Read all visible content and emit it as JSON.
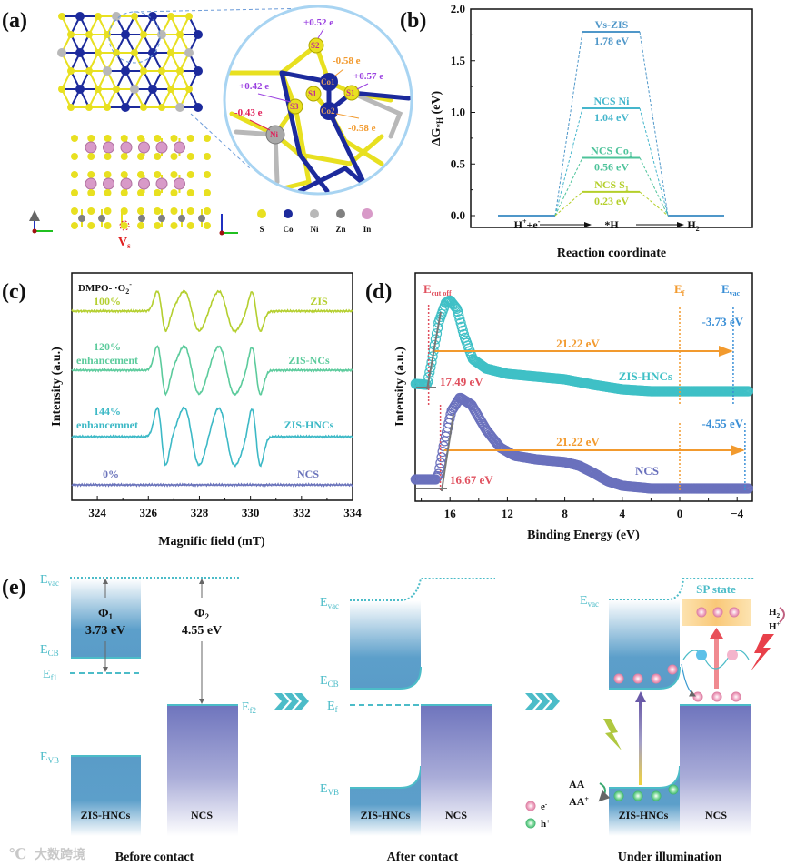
{
  "panel_labels": {
    "a": "(a)",
    "b": "(b)",
    "c": "(c)",
    "d": "(d)",
    "e": "(e)"
  },
  "panel_a": {
    "vacancy_label": {
      "main": "V",
      "sub": "s"
    },
    "charges": {
      "s2": "+0.52 e",
      "co1": "-0.58 e",
      "s1": "+0.57 e",
      "s3": "+0.42 e",
      "ni": "-0.43 e",
      "co2": "-0.58 e"
    },
    "zoom_atom_labels": {
      "s2": "S2",
      "co1": "Co1",
      "s1": "S1",
      "s": "S1",
      "s3": "S3",
      "co2": "Co2",
      "ni": "Ni"
    },
    "legend": [
      "S",
      "Co",
      "Ni",
      "Zn",
      "In"
    ],
    "colors": {
      "S": "#e8e020",
      "Co": "#1c2a9c",
      "Ni": "#b8b8b8",
      "Zn": "#808080",
      "In": "#d89ac8"
    }
  },
  "chart_data": [
    {
      "id": "b",
      "type": "line",
      "title": "",
      "xlabel": "Reaction coordinate",
      "ylabel": {
        "main": "ΔG",
        "sub": "*H",
        "unit": " (eV)"
      },
      "ylim": [
        -0.11,
        2.0
      ],
      "yticks": [
        "0.0",
        "0.5",
        "1.0",
        "1.5",
        "2.0"
      ],
      "ytick_values": [
        0,
        0.5,
        1.0,
        1.5,
        2.0
      ],
      "x_steps": [
        {
          "main": "H",
          "sup1": "+",
          "mid": "+e",
          "sup2": "-"
        },
        {
          "main": "*H"
        },
        {
          "main": "H",
          "sub": "2"
        }
      ],
      "series": [
        {
          "name": "Vs-ZIS",
          "name_sub": "",
          "value": 1.78,
          "label": "1.78 eV",
          "color": "#4f97c9"
        },
        {
          "name": "NCS Ni",
          "name_sub": "",
          "value": 1.04,
          "label": "1.04 eV",
          "color": "#45b6cc"
        },
        {
          "name": "NCS Co",
          "name_sub": "1",
          "value": 0.56,
          "label": "0.56 eV",
          "color": "#4dc39a"
        },
        {
          "name": "NCS S",
          "name_sub": "1",
          "value": 0.23,
          "label": "0.23 eV",
          "color": "#b4cf2a"
        }
      ]
    },
    {
      "id": "c",
      "type": "line",
      "title": {
        "main": "DMPO- ·O",
        "sub": "2",
        "sup": "-"
      },
      "xlabel": "Magnific field (mT)",
      "ylabel": "Intensity (a.u.)",
      "xlim": [
        323,
        334
      ],
      "xticks": [
        324,
        326,
        328,
        330,
        332,
        334
      ],
      "peaks": [
        {
          "center": 326.52,
          "width": 0.17
        },
        {
          "center": 327.7,
          "width": 0.3
        },
        {
          "center": 329.07,
          "width": 0.32
        },
        {
          "center": 330.22,
          "width": 0.17
        }
      ],
      "series": [
        {
          "name": "ZIS",
          "percent": "100%",
          "note": "",
          "relative_intensity": 1.0,
          "color": "#b4cf2f"
        },
        {
          "name": "ZIS-NCs",
          "percent": "120%",
          "note": "enhancement",
          "relative_intensity": 1.2,
          "color": "#5ccb9c"
        },
        {
          "name": "ZIS-HNCs",
          "percent": "144%",
          "note": "enhancemnet",
          "relative_intensity": 1.44,
          "color": "#3db9c6"
        },
        {
          "name": "NCS",
          "percent": "0%",
          "note": "",
          "relative_intensity": 0.0,
          "color": "#6a73bb"
        }
      ]
    },
    {
      "id": "d",
      "type": "scatter",
      "xlabel": "Binding Energy (eV)",
      "ylabel": "Intensity (a.u.)",
      "xlim": [
        18.4,
        -4.8
      ],
      "xticks": [
        16,
        12,
        8,
        4,
        0,
        -4
      ],
      "xtick_labels": [
        "16",
        "12",
        "8",
        "4",
        "0",
        "−4"
      ],
      "markers": {
        "cutoff": {
          "main": "E",
          "sub": "cut off",
          "color": "#e0505e"
        },
        "fermi": {
          "main": "E",
          "sub": "f",
          "value": 0,
          "color": "#f29a2e"
        },
        "vacuum": {
          "main": "E",
          "sub": "vac",
          "color": "#3a8fd6"
        }
      },
      "series": [
        {
          "name": "ZIS-HNCs",
          "color": "#3fc0c6",
          "cutoff": 17.49,
          "cutoff_label": "17.49 eV",
          "evac": -3.73,
          "evac_label": "-3.73 eV",
          "photon_label": "21.22 eV",
          "points": [
            [
              18.4,
              0.08
            ],
            [
              17.6,
              0.07
            ],
            [
              17.3,
              0.3
            ],
            [
              16.8,
              0.75
            ],
            [
              16.3,
              0.97
            ],
            [
              16.0,
              1.0
            ],
            [
              15.5,
              0.9
            ],
            [
              15.0,
              0.6
            ],
            [
              14.4,
              0.35
            ],
            [
              13.5,
              0.25
            ],
            [
              12,
              0.19
            ],
            [
              10,
              0.16
            ],
            [
              8,
              0.13
            ],
            [
              6,
              0.07
            ],
            [
              4,
              0.02
            ],
            [
              2,
              0
            ],
            [
              -4.8,
              0
            ]
          ]
        },
        {
          "name": "NCS",
          "color": "#6a71bd",
          "cutoff": 16.67,
          "cutoff_label": "16.67 eV",
          "evac": -4.55,
          "evac_label": "-4.55 eV",
          "photon_label": "21.22 eV",
          "points": [
            [
              18.4,
              0.1
            ],
            [
              17.0,
              0.1
            ],
            [
              16.8,
              0.15
            ],
            [
              16.4,
              0.5
            ],
            [
              15.9,
              0.85
            ],
            [
              15.3,
              1.0
            ],
            [
              14.5,
              0.92
            ],
            [
              13.5,
              0.65
            ],
            [
              12.5,
              0.45
            ],
            [
              11.5,
              0.36
            ],
            [
              10,
              0.32
            ],
            [
              8,
              0.29
            ],
            [
              7,
              0.25
            ],
            [
              6,
              0.17
            ],
            [
              5,
              0.08
            ],
            [
              4,
              0.03
            ],
            [
              2,
              0
            ],
            [
              -4.8,
              0
            ]
          ]
        }
      ]
    }
  ],
  "panel_e": {
    "levels": {
      "evac": {
        "main": "E",
        "sub": "vac"
      },
      "ecb": {
        "main": "E",
        "sub": "CB"
      },
      "ef1": {
        "main": "E",
        "sub": "f1"
      },
      "ef2": {
        "main": "E",
        "sub": "f2"
      },
      "ef": {
        "main": "E",
        "sub": "f"
      },
      "evb": {
        "main": "E",
        "sub": "VB"
      }
    },
    "phi1": {
      "main": "Φ",
      "sub": "1",
      "value": "3.73 eV"
    },
    "phi2": {
      "main": "Φ",
      "sub": "2",
      "value": "4.55 eV"
    },
    "materials": {
      "zis": "ZIS-HNCs",
      "ncs": "NCS"
    },
    "captions": [
      "Before contact",
      "After contact",
      "Under illumination"
    ],
    "sp_state": "SP state",
    "h2": {
      "main": "H",
      "sub": "2"
    },
    "hplus": {
      "main": "H",
      "sup": "+"
    },
    "aa": "AA",
    "aaplus": {
      "main": "AA",
      "sup": "+"
    },
    "legend": [
      {
        "main": "e",
        "sup": "-"
      },
      {
        "main": "h",
        "sup": "+"
      }
    ],
    "watermark": "大数跨境"
  }
}
